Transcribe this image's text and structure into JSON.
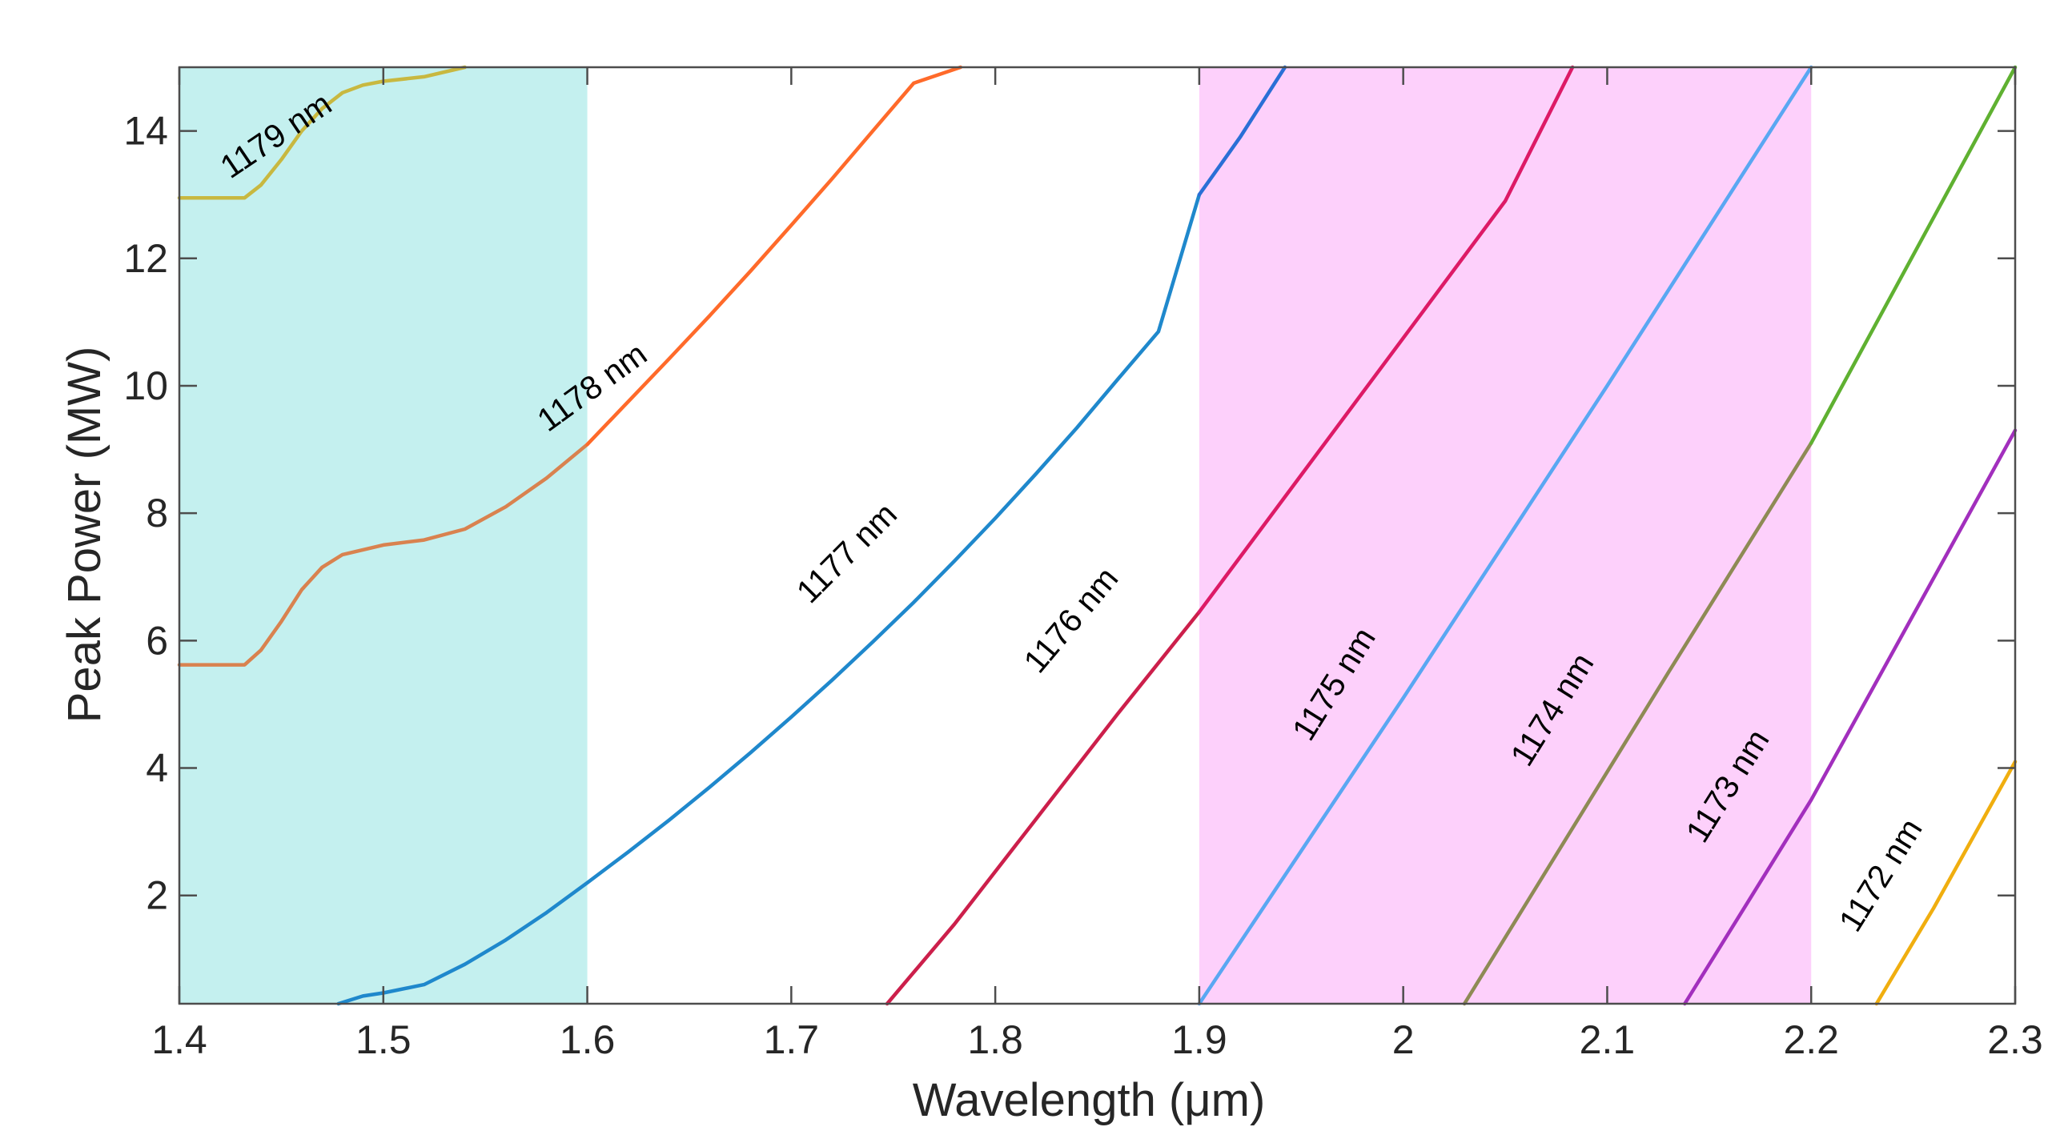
{
  "chart_data": {
    "type": "line",
    "title": "",
    "xlabel": "Wavelength (μm)",
    "ylabel": "Peak Power (MW)",
    "xlim": [
      1.4,
      2.3
    ],
    "ylim": [
      0.3,
      15.0
    ],
    "xticks": [
      1.4,
      1.5,
      1.6,
      1.7,
      1.8,
      1.9,
      2.0,
      2.1,
      2.2,
      2.3
    ],
    "xtick_labels": [
      "1.4",
      "1.5",
      "1.6",
      "1.7",
      "1.8",
      "1.9",
      "2",
      "2.1",
      "2.2",
      "2.3"
    ],
    "yticks": [
      2,
      4,
      6,
      8,
      10,
      12,
      14
    ],
    "ytick_labels": [
      "2",
      "4",
      "6",
      "8",
      "10",
      "12",
      "14"
    ],
    "grid": false,
    "shaded_regions": [
      {
        "x": [
          1.4,
          1.6
        ],
        "color": "#c4f0ef"
      },
      {
        "x": [
          1.9,
          2.2
        ],
        "color": "#fdd0fb"
      }
    ],
    "series": [
      {
        "name": "1179 nm",
        "color": "#c8b840",
        "x": [
          1.4,
          1.432,
          1.44,
          1.45,
          1.46,
          1.47,
          1.48,
          1.49,
          1.5,
          1.52,
          1.54
        ],
        "y": [
          12.95,
          12.95,
          13.15,
          13.55,
          14.0,
          14.35,
          14.6,
          14.72,
          14.78,
          14.85,
          15.0
        ]
      },
      {
        "name": "1178 nm",
        "color": "#d9824f",
        "x": [
          1.4,
          1.432,
          1.44,
          1.45,
          1.46,
          1.47,
          1.48,
          1.5,
          1.52,
          1.54,
          1.56,
          1.58,
          1.6
        ],
        "y": [
          5.62,
          5.62,
          5.85,
          6.3,
          6.8,
          7.15,
          7.35,
          7.5,
          7.58,
          7.75,
          8.1,
          8.55,
          9.08
        ]
      },
      {
        "name": "1178 nm",
        "color": "#ff6a2a",
        "x": [
          1.6,
          1.62,
          1.64,
          1.66,
          1.68,
          1.7,
          1.72,
          1.74,
          1.76,
          1.783
        ],
        "y": [
          9.08,
          9.75,
          10.42,
          11.1,
          11.8,
          12.52,
          13.25,
          14.0,
          14.75,
          15.0
        ]
      },
      {
        "name": "1177 nm",
        "color": "#1f88cc",
        "x": [
          1.478,
          1.49,
          1.5,
          1.52,
          1.54,
          1.56,
          1.58,
          1.6,
          1.62,
          1.64,
          1.66,
          1.68,
          1.7,
          1.72,
          1.74,
          1.76,
          1.78,
          1.8,
          1.82,
          1.84,
          1.86,
          1.88,
          1.9
        ],
        "y": [
          0.3,
          0.42,
          0.47,
          0.6,
          0.92,
          1.3,
          1.73,
          2.2,
          2.68,
          3.18,
          3.7,
          4.24,
          4.8,
          5.38,
          5.98,
          6.6,
          7.25,
          7.92,
          8.62,
          9.34,
          10.1,
          10.85,
          13.0
        ]
      },
      {
        "name": "1177 nm",
        "color": "#2a6fd6",
        "x": [
          1.9,
          1.91,
          1.92,
          1.93,
          1.942
        ],
        "y": [
          13.0,
          13.45,
          13.9,
          14.4,
          15.0
        ]
      },
      {
        "name": "1176 nm",
        "color": "#cc1f4b",
        "x": [
          1.747,
          1.78,
          1.82,
          1.86,
          1.9
        ],
        "y": [
          0.3,
          1.55,
          3.2,
          4.85,
          6.45
        ]
      },
      {
        "name": "1176 nm",
        "color": "#dd1a66",
        "x": [
          1.9,
          1.95,
          2.0,
          2.05,
          2.083
        ],
        "y": [
          6.45,
          8.6,
          10.75,
          12.9,
          15.0
        ]
      },
      {
        "name": "1175 nm",
        "color": "#5aa7f2",
        "x": [
          1.9,
          1.95,
          2.0,
          2.05,
          2.1,
          2.15,
          2.2
        ],
        "y": [
          0.3,
          2.7,
          5.1,
          7.55,
          10.0,
          12.5,
          15.0
        ]
      },
      {
        "name": "1174 nm",
        "color": "#8e8a55",
        "x": [
          2.03,
          2.08,
          2.13,
          2.2
        ],
        "y": [
          0.3,
          2.9,
          5.5,
          9.1
        ]
      },
      {
        "name": "1174 nm",
        "color": "#5fb131",
        "x": [
          2.2,
          2.25,
          2.3
        ],
        "y": [
          9.1,
          12.05,
          15.0
        ]
      },
      {
        "name": "1173 nm",
        "color": "#a22fbd",
        "x": [
          2.138,
          2.17,
          2.2,
          2.25,
          2.3
        ],
        "y": [
          0.3,
          1.95,
          3.5,
          6.4,
          9.3
        ]
      },
      {
        "name": "1172 nm",
        "color": "#f0ae0f",
        "x": [
          2.232,
          2.26,
          2.3
        ],
        "y": [
          0.3,
          1.8,
          4.1
        ]
      }
    ],
    "annotations": [
      {
        "text": "1179 nm",
        "x": 1.448,
        "y": 13.9,
        "angle": -34
      },
      {
        "text": "1178 nm",
        "x": 1.603,
        "y": 9.95,
        "angle": -36
      },
      {
        "text": "1177 nm",
        "x": 1.728,
        "y": 7.35,
        "angle": -45
      },
      {
        "text": "1176 nm",
        "x": 1.838,
        "y": 6.3,
        "angle": -50
      },
      {
        "text": "1175 nm",
        "x": 1.967,
        "y": 5.3,
        "angle": -58
      },
      {
        "text": "1174 nm",
        "x": 2.074,
        "y": 4.9,
        "angle": -58
      },
      {
        "text": "1173 nm",
        "x": 2.16,
        "y": 3.7,
        "angle": -58
      },
      {
        "text": "1172 nm",
        "x": 2.235,
        "y": 2.3,
        "angle": -58
      }
    ]
  }
}
